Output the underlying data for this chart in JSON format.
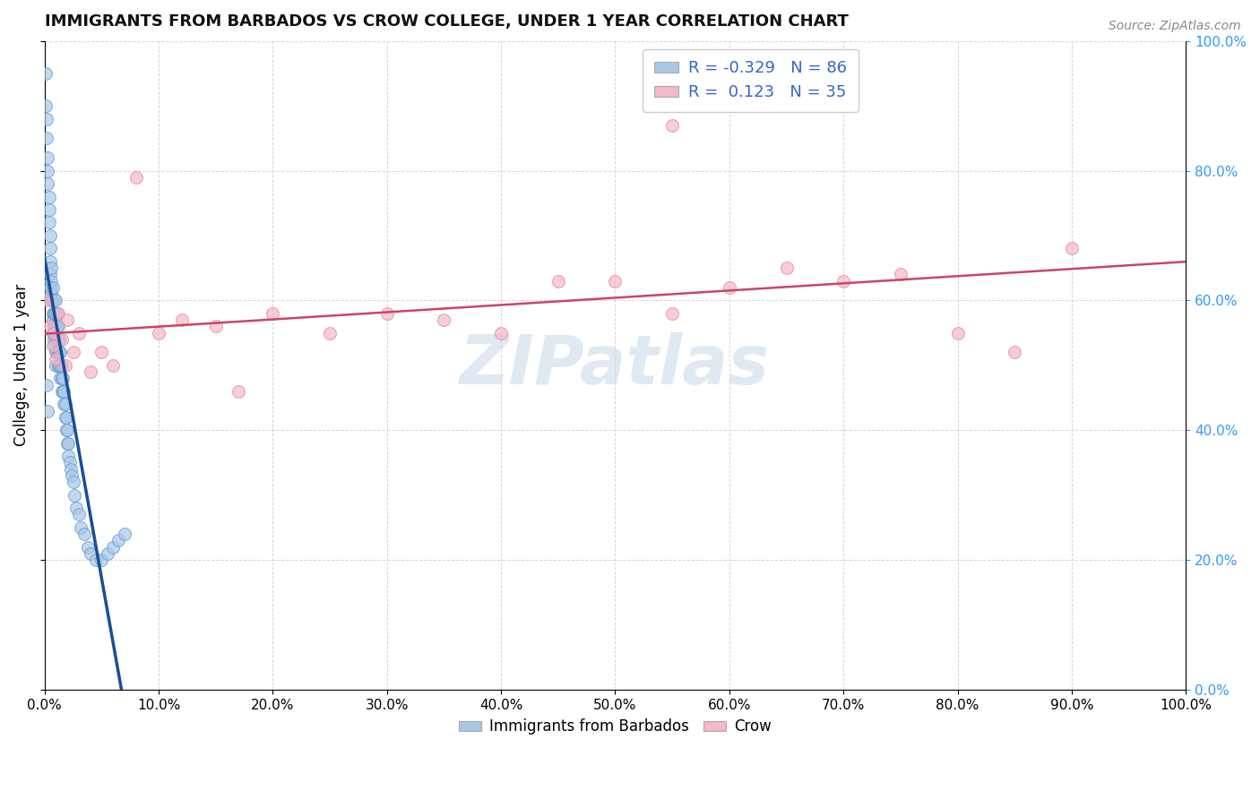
{
  "title": "IMMIGRANTS FROM BARBADOS VS CROW COLLEGE, UNDER 1 YEAR CORRELATION CHART",
  "source": "Source: ZipAtlas.com",
  "ylabel": "College, Under 1 year",
  "xlim": [
    0.0,
    1.0
  ],
  "ylim": [
    0.0,
    1.0
  ],
  "blue_color": "#a8c8e8",
  "blue_edge_color": "#6699cc",
  "pink_color": "#f4b8c8",
  "pink_edge_color": "#dd8899",
  "blue_line_color": "#1a4d99",
  "pink_line_color": "#cc4466",
  "blue_R": -0.329,
  "blue_N": 86,
  "pink_R": 0.123,
  "pink_N": 35,
  "watermark": "ZIPatlas",
  "figsize": [
    14.06,
    8.92
  ],
  "dpi": 100,
  "right_ytick_color": "#3399ff",
  "legend_R_color": "#3366cc",
  "blue_x": [
    0.001,
    0.001,
    0.002,
    0.002,
    0.003,
    0.003,
    0.003,
    0.004,
    0.004,
    0.004,
    0.005,
    0.005,
    0.005,
    0.005,
    0.005,
    0.006,
    0.006,
    0.006,
    0.006,
    0.007,
    0.007,
    0.007,
    0.007,
    0.007,
    0.008,
    0.008,
    0.008,
    0.008,
    0.009,
    0.009,
    0.009,
    0.009,
    0.01,
    0.01,
    0.01,
    0.01,
    0.01,
    0.01,
    0.011,
    0.011,
    0.011,
    0.011,
    0.012,
    0.012,
    0.012,
    0.012,
    0.013,
    0.013,
    0.013,
    0.014,
    0.014,
    0.014,
    0.015,
    0.015,
    0.015,
    0.016,
    0.016,
    0.017,
    0.017,
    0.018,
    0.018,
    0.019,
    0.019,
    0.02,
    0.02,
    0.021,
    0.021,
    0.022,
    0.023,
    0.024,
    0.025,
    0.026,
    0.028,
    0.03,
    0.032,
    0.035,
    0.038,
    0.04,
    0.045,
    0.05,
    0.055,
    0.06,
    0.065,
    0.07,
    0.002,
    0.003
  ],
  "blue_y": [
    0.95,
    0.9,
    0.88,
    0.85,
    0.82,
    0.8,
    0.78,
    0.76,
    0.74,
    0.72,
    0.7,
    0.68,
    0.66,
    0.64,
    0.62,
    0.65,
    0.63,
    0.61,
    0.6,
    0.62,
    0.6,
    0.58,
    0.57,
    0.55,
    0.6,
    0.58,
    0.56,
    0.54,
    0.58,
    0.56,
    0.55,
    0.53,
    0.6,
    0.58,
    0.56,
    0.54,
    0.52,
    0.5,
    0.58,
    0.56,
    0.54,
    0.52,
    0.56,
    0.54,
    0.52,
    0.5,
    0.54,
    0.52,
    0.5,
    0.52,
    0.5,
    0.48,
    0.5,
    0.48,
    0.46,
    0.48,
    0.46,
    0.46,
    0.44,
    0.44,
    0.42,
    0.42,
    0.4,
    0.4,
    0.38,
    0.38,
    0.36,
    0.35,
    0.34,
    0.33,
    0.32,
    0.3,
    0.28,
    0.27,
    0.25,
    0.24,
    0.22,
    0.21,
    0.2,
    0.2,
    0.21,
    0.22,
    0.23,
    0.24,
    0.47,
    0.43
  ],
  "pink_x": [
    0.003,
    0.005,
    0.007,
    0.008,
    0.01,
    0.012,
    0.015,
    0.018,
    0.02,
    0.025,
    0.03,
    0.04,
    0.05,
    0.06,
    0.08,
    0.1,
    0.15,
    0.2,
    0.25,
    0.3,
    0.35,
    0.4,
    0.5,
    0.55,
    0.6,
    0.65,
    0.7,
    0.75,
    0.8,
    0.85,
    0.9,
    0.12,
    0.17,
    0.45,
    0.55
  ],
  "pink_y": [
    0.6,
    0.56,
    0.53,
    0.55,
    0.51,
    0.58,
    0.54,
    0.5,
    0.57,
    0.52,
    0.55,
    0.49,
    0.52,
    0.5,
    0.79,
    0.55,
    0.56,
    0.58,
    0.55,
    0.58,
    0.57,
    0.55,
    0.63,
    0.87,
    0.62,
    0.65,
    0.63,
    0.64,
    0.55,
    0.52,
    0.68,
    0.57,
    0.46,
    0.63,
    0.58
  ]
}
